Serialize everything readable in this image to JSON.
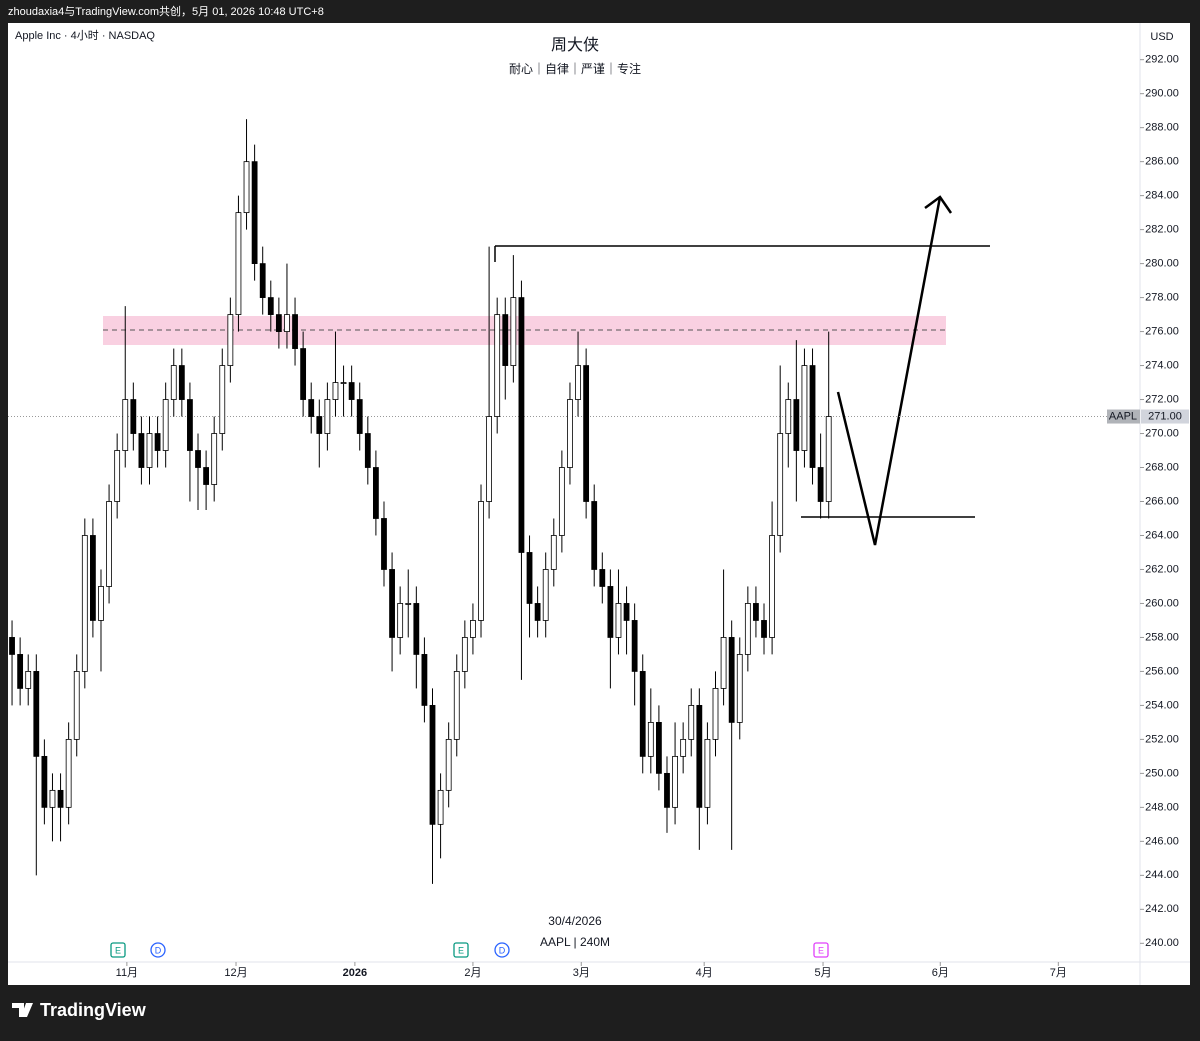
{
  "header": {
    "text": "zhoudaxia4与TradingView.com共创，5月 01, 2026 10:48 UTC+8"
  },
  "footer": {
    "brand": "TradingView"
  },
  "chart_data": {
    "type": "candlestick",
    "symbol_info": "Apple Inc · 4小时 · NASDAQ",
    "title": "周大侠",
    "subtitle": "耐心｜自律｜严谨｜专注",
    "currency": "USD",
    "watermark": [
      "30/4/2026",
      "AAPL | 240M"
    ],
    "events": [
      "E",
      "D",
      "E",
      "D",
      "E"
    ],
    "color": "#000000",
    "up_color": "#ffffff",
    "down_color": "#000000",
    "grid": false,
    "last_price": {
      "symbol": "AAPL",
      "price": {
        "value": 271,
        "label": "271.00"
      }
    },
    "xlim": [
      -0.5,
      139.5
    ],
    "xticks": [
      {
        "value": 14.2,
        "label": "11月"
      },
      {
        "value": 27.7,
        "label": "12月"
      },
      {
        "value": 42.4,
        "label": "2026"
      },
      {
        "value": 57,
        "label": "2月"
      },
      {
        "value": 70.4,
        "label": "3月"
      },
      {
        "value": 85.6,
        "label": "4月"
      },
      {
        "value": 100.3,
        "label": "5月"
      },
      {
        "value": 114.8,
        "label": "6月"
      },
      {
        "value": 129.4,
        "label": "7月"
      }
    ],
    "ylim": [
      238.9,
      294.1
    ],
    "yticks": [
      {
        "value": 240,
        "label": "240.00"
      },
      {
        "value": 242,
        "label": "242.00"
      },
      {
        "value": 244,
        "label": "244.00"
      },
      {
        "value": 246,
        "label": "246.00"
      },
      {
        "value": 248,
        "label": "248.00"
      },
      {
        "value": 250,
        "label": "250.00"
      },
      {
        "value": 252,
        "label": "252.00"
      },
      {
        "value": 254,
        "label": "254.00"
      },
      {
        "value": 256,
        "label": "256.00"
      },
      {
        "value": 258,
        "label": "258.00"
      },
      {
        "value": 260,
        "label": "260.00"
      },
      {
        "value": 262,
        "label": "262.00"
      },
      {
        "value": 264,
        "label": "264.00"
      },
      {
        "value": 266,
        "label": "266.00"
      },
      {
        "value": 268,
        "label": "268.00"
      },
      {
        "value": 270,
        "label": "270.00"
      },
      {
        "value": 272,
        "label": "272.00"
      },
      {
        "value": 274,
        "label": "274.00"
      },
      {
        "value": 276,
        "label": "276.00"
      },
      {
        "value": 278,
        "label": "278.00"
      },
      {
        "value": 280,
        "label": "280.00"
      },
      {
        "value": 282,
        "label": "282.00"
      },
      {
        "value": 284,
        "label": "284.00"
      },
      {
        "value": 286,
        "label": "286.00"
      },
      {
        "value": 288,
        "label": "288.00"
      },
      {
        "value": 290,
        "label": "290.00"
      },
      {
        "value": 292,
        "label": "292.00"
      }
    ],
    "ohlc": [
      [
        258,
        259,
        254,
        257
      ],
      [
        257,
        258,
        254,
        255
      ],
      [
        255,
        257,
        254,
        256
      ],
      [
        256,
        257,
        244,
        251
      ],
      [
        251,
        252,
        247,
        248
      ],
      [
        248,
        250,
        246,
        249
      ],
      [
        249,
        250,
        246,
        248
      ],
      [
        248,
        253,
        247,
        252
      ],
      [
        252,
        257,
        251,
        256
      ],
      [
        256,
        265,
        255,
        264
      ],
      [
        264,
        265,
        258,
        259
      ],
      [
        259,
        262,
        256,
        261
      ],
      [
        261,
        267,
        260,
        266
      ],
      [
        266,
        270,
        265,
        269
      ],
      [
        269,
        277.5,
        268,
        272
      ],
      [
        272,
        273,
        269,
        270
      ],
      [
        270,
        271,
        267,
        268
      ],
      [
        268,
        271,
        267,
        270
      ],
      [
        270,
        271,
        268,
        269
      ],
      [
        269,
        273,
        268,
        272
      ],
      [
        272,
        275,
        271,
        274
      ],
      [
        274,
        275,
        271,
        272
      ],
      [
        272,
        273,
        266,
        269
      ],
      [
        269,
        270,
        265.5,
        268
      ],
      [
        268,
        269,
        265.5,
        267
      ],
      [
        267,
        271,
        266,
        270
      ],
      [
        270,
        275,
        269,
        274
      ],
      [
        274,
        278,
        273,
        277
      ],
      [
        277,
        284,
        276,
        283
      ],
      [
        283,
        288.5,
        282,
        286
      ],
      [
        286,
        287,
        279,
        280
      ],
      [
        280,
        281,
        277,
        278
      ],
      [
        278,
        279,
        276,
        277
      ],
      [
        277,
        278,
        275,
        276
      ],
      [
        276,
        280,
        275,
        277
      ],
      [
        277,
        278,
        274,
        275
      ],
      [
        275,
        276,
        271,
        272
      ],
      [
        272,
        273,
        270,
        271
      ],
      [
        271,
        272,
        268,
        270
      ],
      [
        270,
        273,
        269,
        272
      ],
      [
        272,
        276,
        271,
        273
      ],
      [
        273,
        274,
        271,
        273
      ],
      [
        273,
        274,
        271,
        272
      ],
      [
        272,
        273,
        269,
        270
      ],
      [
        270,
        271,
        267,
        268
      ],
      [
        268,
        269,
        264,
        265
      ],
      [
        265,
        266,
        261,
        262
      ],
      [
        262,
        263,
        256,
        258
      ],
      [
        258,
        261,
        257,
        260
      ],
      [
        260,
        262,
        258,
        260
      ],
      [
        260,
        261,
        255,
        257
      ],
      [
        257,
        258,
        253,
        254
      ],
      [
        254,
        255,
        243.5,
        247
      ],
      [
        247,
        250,
        245,
        249
      ],
      [
        249,
        253,
        248,
        252
      ],
      [
        252,
        257,
        251,
        256
      ],
      [
        256,
        259,
        255,
        258
      ],
      [
        258,
        260,
        257,
        259
      ],
      [
        259,
        267,
        258,
        266
      ],
      [
        266,
        281,
        265,
        271
      ],
      [
        271,
        278,
        270,
        277
      ],
      [
        277,
        278,
        272,
        274
      ],
      [
        274,
        280.5,
        273,
        278
      ],
      [
        278,
        279,
        255.5,
        263
      ],
      [
        263,
        264,
        258,
        260
      ],
      [
        260,
        261,
        258,
        259
      ],
      [
        259,
        263,
        258,
        262
      ],
      [
        262,
        265,
        261,
        264
      ],
      [
        264,
        269,
        263,
        268
      ],
      [
        268,
        273,
        267,
        272
      ],
      [
        272,
        276,
        271,
        274
      ],
      [
        274,
        275,
        265,
        266
      ],
      [
        266,
        267,
        261,
        262
      ],
      [
        262,
        263,
        260,
        261
      ],
      [
        261,
        262,
        255,
        258
      ],
      [
        258,
        262,
        257,
        260
      ],
      [
        260,
        261,
        257,
        259
      ],
      [
        259,
        260,
        254,
        256
      ],
      [
        256,
        257,
        250,
        251
      ],
      [
        251,
        255,
        250,
        253
      ],
      [
        253,
        254,
        249,
        250
      ],
      [
        250,
        251,
        246.5,
        248
      ],
      [
        248,
        253,
        247,
        251
      ],
      [
        251,
        253,
        250,
        252
      ],
      [
        252,
        255,
        251,
        254
      ],
      [
        254,
        255,
        245.5,
        248
      ],
      [
        248,
        253,
        247,
        252
      ],
      [
        252,
        256,
        251,
        255
      ],
      [
        255,
        262,
        254,
        258
      ],
      [
        258,
        259,
        245.5,
        253
      ],
      [
        253,
        258,
        252,
        257
      ],
      [
        257,
        261,
        256,
        260
      ],
      [
        260,
        261,
        258,
        259
      ],
      [
        259,
        260,
        257,
        258
      ],
      [
        258,
        266,
        257,
        264
      ],
      [
        264,
        274,
        263,
        270
      ],
      [
        270,
        273,
        268,
        272
      ],
      [
        272,
        275.5,
        266,
        269
      ],
      [
        269,
        275,
        268,
        274
      ],
      [
        274,
        275,
        267,
        268
      ],
      [
        268,
        270,
        265,
        266
      ],
      [
        266,
        276,
        265,
        271
      ]
    ]
  }
}
